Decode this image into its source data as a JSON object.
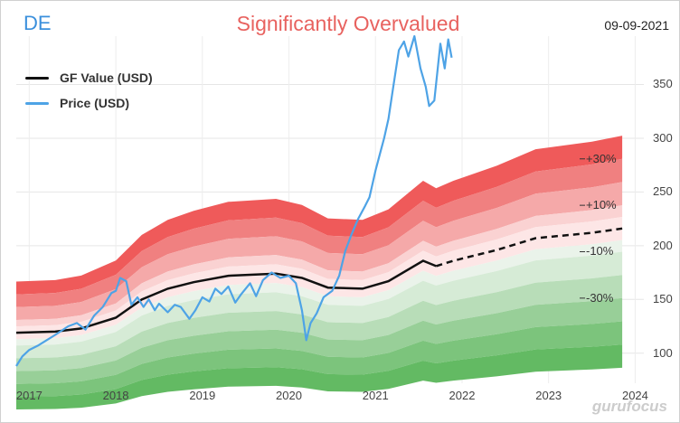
{
  "header": {
    "ticker": "DE",
    "title": "Significantly Overvalued",
    "date": "09-09-2021"
  },
  "watermark": "gurufocus",
  "chart_data": {
    "type": "line",
    "title": "Significantly Overvalued",
    "legend": [
      "GF Value (USD)",
      "Price (USD)"
    ],
    "legend_position": "top-left",
    "x_ticks": [
      "2017",
      "2018",
      "2019",
      "2020",
      "2021",
      "2022",
      "2023",
      "2024"
    ],
    "y_ticks": [
      100,
      150,
      200,
      250,
      300,
      350
    ],
    "ylim": [
      72,
      395
    ],
    "xlim": [
      2016.85,
      2024.1
    ],
    "band_labels": [
      {
        "label": "+30%",
        "factor": 1.3
      },
      {
        "label": "+10%",
        "factor": 1.1
      },
      {
        "label": "-10%",
        "factor": 0.9
      },
      {
        "label": "-30%",
        "factor": 0.7
      }
    ],
    "band_factors": [
      1.4,
      1.3,
      1.2,
      1.1,
      1.05,
      0.95,
      0.9,
      0.8,
      0.7,
      0.6,
      0.5
    ],
    "band_colors": [
      "#ef5a5a",
      "#f08080",
      "#f5a9a9",
      "#fad2d2",
      "#fde6e6",
      "#eaf3ea",
      "#d6ebd6",
      "#b8ddb8",
      "#98cf98",
      "#7cc47c",
      "#63ba63"
    ],
    "grid": true,
    "series": [
      {
        "name": "GF Value (USD)",
        "color": "#111111",
        "projected_from": 2021.7,
        "points": [
          [
            2016.85,
            119
          ],
          [
            2017.3,
            120
          ],
          [
            2017.6,
            123
          ],
          [
            2018.0,
            133
          ],
          [
            2018.3,
            150
          ],
          [
            2018.6,
            160
          ],
          [
            2018.9,
            166
          ],
          [
            2019.3,
            172
          ],
          [
            2019.85,
            174
          ],
          [
            2020.15,
            170
          ],
          [
            2020.45,
            161
          ],
          [
            2020.85,
            160
          ],
          [
            2021.15,
            167
          ],
          [
            2021.55,
            186
          ],
          [
            2021.7,
            181
          ],
          [
            2021.9,
            186
          ],
          [
            2022.4,
            196
          ],
          [
            2022.85,
            207
          ],
          [
            2023.5,
            212
          ],
          [
            2023.85,
            216
          ]
        ]
      },
      {
        "name": "Price (USD)",
        "color": "#4ea3e6",
        "points": [
          [
            2016.85,
            88
          ],
          [
            2016.92,
            97
          ],
          [
            2017.0,
            103
          ],
          [
            2017.1,
            107
          ],
          [
            2017.2,
            112
          ],
          [
            2017.3,
            117
          ],
          [
            2017.45,
            125
          ],
          [
            2017.55,
            128
          ],
          [
            2017.65,
            122
          ],
          [
            2017.75,
            135
          ],
          [
            2017.85,
            143
          ],
          [
            2017.95,
            156
          ],
          [
            2018.0,
            158
          ],
          [
            2018.05,
            170
          ],
          [
            2018.12,
            167
          ],
          [
            2018.18,
            145
          ],
          [
            2018.25,
            152
          ],
          [
            2018.32,
            143
          ],
          [
            2018.38,
            150
          ],
          [
            2018.45,
            140
          ],
          [
            2018.5,
            146
          ],
          [
            2018.6,
            138
          ],
          [
            2018.68,
            145
          ],
          [
            2018.75,
            143
          ],
          [
            2018.85,
            132
          ],
          [
            2018.92,
            140
          ],
          [
            2019.0,
            152
          ],
          [
            2019.08,
            148
          ],
          [
            2019.15,
            160
          ],
          [
            2019.22,
            155
          ],
          [
            2019.3,
            162
          ],
          [
            2019.38,
            147
          ],
          [
            2019.45,
            155
          ],
          [
            2019.55,
            165
          ],
          [
            2019.62,
            153
          ],
          [
            2019.7,
            168
          ],
          [
            2019.8,
            175
          ],
          [
            2019.9,
            170
          ],
          [
            2020.0,
            172
          ],
          [
            2020.08,
            165
          ],
          [
            2020.15,
            140
          ],
          [
            2020.2,
            112
          ],
          [
            2020.25,
            128
          ],
          [
            2020.32,
            137
          ],
          [
            2020.4,
            152
          ],
          [
            2020.5,
            158
          ],
          [
            2020.58,
            172
          ],
          [
            2020.65,
            195
          ],
          [
            2020.72,
            210
          ],
          [
            2020.8,
            225
          ],
          [
            2020.88,
            237
          ],
          [
            2020.93,
            245
          ],
          [
            2021.0,
            270
          ],
          [
            2021.05,
            285
          ],
          [
            2021.1,
            300
          ],
          [
            2021.15,
            318
          ],
          [
            2021.2,
            345
          ],
          [
            2021.27,
            382
          ],
          [
            2021.33,
            390
          ],
          [
            2021.38,
            376
          ],
          [
            2021.45,
            395
          ],
          [
            2021.52,
            365
          ],
          [
            2021.58,
            348
          ],
          [
            2021.62,
            330
          ],
          [
            2021.68,
            335
          ],
          [
            2021.75,
            388
          ],
          [
            2021.8,
            365
          ],
          [
            2021.84,
            392
          ],
          [
            2021.88,
            375
          ]
        ]
      }
    ]
  }
}
